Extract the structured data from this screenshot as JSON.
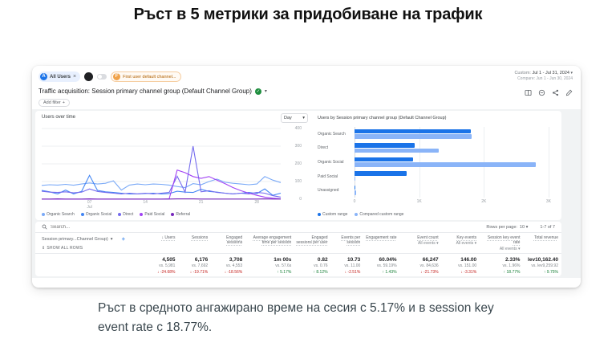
{
  "slide": {
    "title": "Ръст в 5 метрики за придобиване на трафик",
    "caption": "Ръст в средното ангажирано време на сесия с 5.17% и в session key event rate с 18.77%."
  },
  "icons": {
    "close": "×",
    "caret": "▾",
    "check": "✓",
    "plus": "+",
    "expand": "⇕"
  },
  "colors": {
    "accent": "#1a73e8",
    "compare": "#8ab4f8",
    "positive": "#188038",
    "negative": "#c5221f"
  },
  "ga": {
    "header": {
      "all_users_chip": {
        "avatar": "A",
        "label": "All Users"
      },
      "first_user_chip": {
        "avatar": "F",
        "label": "First user default channel..."
      },
      "date_range": {
        "prefix": "Custom:",
        "value": "Jul 1 - Jul 31, 2024",
        "compare": "Compare: Jun 1 - Jun 30, 2024"
      },
      "report_title": "Traffic acquisition: Session primary channel group (Default Channel Group)",
      "add_filter_label": "Add filter"
    },
    "table": {
      "search_placeholder": "Search...",
      "rows_per_page_label": "Rows per page:",
      "rows_per_page_value": "10",
      "pagination": "1-7 of 7",
      "dimension": {
        "label": "Session primary...Channel Group)",
        "show_all": "SHOW ALL ROWS"
      },
      "columns": [
        {
          "label": "↓ Users"
        },
        {
          "label": "Sessions"
        },
        {
          "label": "Engaged sessions"
        },
        {
          "label": "Average engagement time per session"
        },
        {
          "label": "Engaged sessions per user"
        },
        {
          "label": "Events per session"
        },
        {
          "label": "Engagement rate"
        },
        {
          "label": "Event count",
          "sub": "All events ▾"
        },
        {
          "label": "Key events",
          "sub": "All events ▾"
        },
        {
          "label": "Session key event rate",
          "sub": "All events ▾"
        },
        {
          "label": "Total revenue"
        }
      ],
      "totals": [
        {
          "value": "4,505",
          "vs": "vs. 5,981",
          "delta": "↓ -24.68%",
          "dir": "down"
        },
        {
          "value": "6,176",
          "vs": "vs. 7,692",
          "delta": "↓ -19.71%",
          "dir": "down"
        },
        {
          "value": "3,708",
          "vs": "vs. 4,553",
          "delta": "↓ -18.56%",
          "dir": "down"
        },
        {
          "value": "1m 00s",
          "vs": "vs. 57.6s",
          "delta": "↑ 5.17%",
          "dir": "up"
        },
        {
          "value": "0.82",
          "vs": "vs. 0.76",
          "delta": "↑ 8.12%",
          "dir": "up"
        },
        {
          "value": "10.73",
          "vs": "vs. 11.00",
          "delta": "↓ -2.51%",
          "dir": "down"
        },
        {
          "value": "60.04%",
          "vs": "vs. 59.19%",
          "delta": "↑ 1.43%",
          "dir": "up"
        },
        {
          "value": "66,247",
          "vs": "vs. 84,636",
          "delta": "↓ -21.73%",
          "dir": "down"
        },
        {
          "value": "146.00",
          "vs": "vs. 151.00",
          "delta": "↓ -3.31%",
          "dir": "down"
        },
        {
          "value": "2.33%",
          "vs": "vs. 1.96%",
          "delta": "↑ 18.77%",
          "dir": "up"
        },
        {
          "value": "lev10,162.40",
          "vs": "vs. lev9,259.92",
          "delta": "↑ 9.75%",
          "dir": "up"
        }
      ]
    }
  },
  "chart_data": [
    {
      "type": "line",
      "title": "Users over time",
      "interval": "Day",
      "ylim": [
        0,
        400
      ],
      "y_ticks": [
        0,
        100,
        200,
        300,
        400
      ],
      "x_range": [
        "Jul 1, 2024",
        "Jul 31, 2024"
      ],
      "x_ticks": [
        {
          "day": 7,
          "label": "07",
          "sub": "Jul"
        },
        {
          "day": 14,
          "label": "14"
        },
        {
          "day": 21,
          "label": "21"
        },
        {
          "day": 28,
          "label": "28"
        }
      ],
      "series": [
        {
          "name": "Organic Search",
          "color": "#7baaf7",
          "values": [
            78,
            82,
            80,
            84,
            79,
            86,
            92,
            86,
            90,
            104,
            52,
            80,
            86,
            82,
            86,
            84,
            80,
            72,
            66,
            88,
            82,
            100,
            114,
            96,
            90,
            86,
            82,
            86,
            128,
            108,
            94
          ]
        },
        {
          "name": "Organic Social",
          "color": "#4285f4",
          "values": [
            50,
            42,
            30,
            52,
            30,
            44,
            135,
            50,
            42,
            38,
            34,
            30,
            30,
            32,
            34,
            30,
            32,
            45,
            40,
            38,
            56,
            44,
            40,
            34,
            30,
            34,
            38,
            32,
            58,
            22,
            34
          ]
        },
        {
          "name": "Direct",
          "color": "#756bee",
          "values": [
            45,
            40,
            38,
            42,
            36,
            40,
            58,
            44,
            38,
            34,
            30,
            34,
            30,
            34,
            30,
            34,
            38,
            130,
            40,
            300,
            42,
            48,
            38,
            34,
            30,
            34,
            30,
            38,
            34,
            20,
            12
          ]
        },
        {
          "name": "Paid Social",
          "color": "#a142f4",
          "values": [
            0,
            0,
            0,
            0,
            0,
            0,
            0,
            0,
            0,
            0,
            0,
            0,
            0,
            0,
            0,
            0,
            2,
            165,
            150,
            128,
            118,
            128,
            108,
            88,
            66,
            48,
            34,
            22,
            12,
            6,
            2
          ]
        },
        {
          "name": "Referral",
          "color": "#7627bb",
          "values": [
            1,
            1,
            2,
            1,
            1,
            1,
            2,
            1,
            1,
            1,
            1,
            1,
            1,
            1,
            1,
            1,
            1,
            2,
            2,
            2,
            1,
            1,
            1,
            1,
            1,
            1,
            1,
            1,
            2,
            1,
            1
          ]
        }
      ]
    },
    {
      "type": "bar",
      "title": "Users by Session primary channel group (Default Channel Group)",
      "categories": [
        "Organic Search",
        "Direct",
        "Organic Social",
        "Paid Social",
        "Unassigned"
      ],
      "xlim": [
        0,
        3100
      ],
      "x_ticks": [
        {
          "label": "0",
          "value": 0
        },
        {
          "label": "1K",
          "value": 1000
        },
        {
          "label": "2K",
          "value": 2000
        },
        {
          "label": "3K",
          "value": 3000
        }
      ],
      "series": [
        {
          "name": "Custom range",
          "color": "#1a73e8",
          "values": [
            1800,
            930,
            910,
            810,
            5
          ]
        },
        {
          "name": "Compared custom range",
          "color": "#8ab4f8",
          "values": [
            1810,
            1300,
            2800,
            0,
            30
          ]
        }
      ]
    }
  ]
}
